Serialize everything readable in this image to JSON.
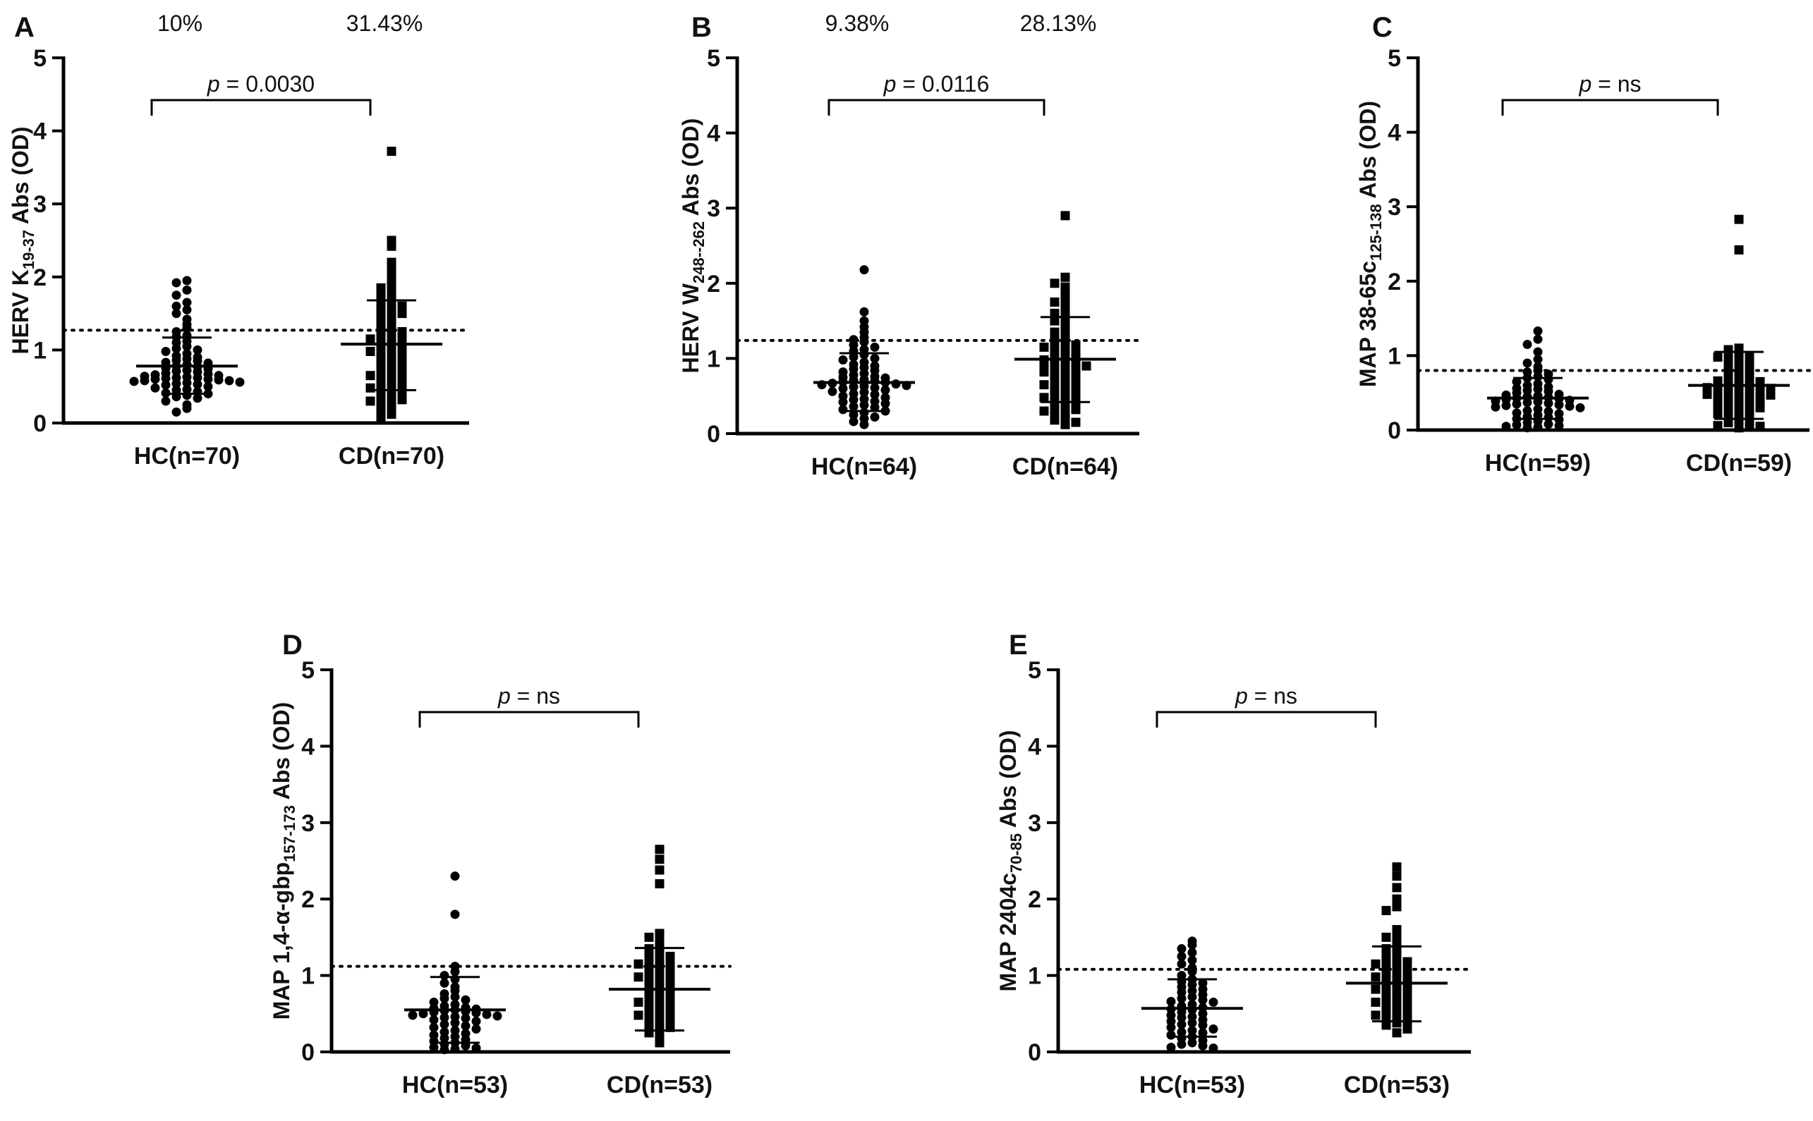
{
  "figure": {
    "background": "#ffffff",
    "marker_color": "#000000"
  },
  "chart_data": [
    {
      "panel": "A",
      "type": "scatter",
      "ylabel": {
        "main": "HERV K",
        "sub": "19-37",
        "tail": " Abs (OD)"
      },
      "ylim": [
        0,
        5
      ],
      "yticks": [
        0,
        1,
        2,
        3,
        4,
        5
      ],
      "cutoff": 1.27,
      "percentages": [
        "10%",
        "31.43%"
      ],
      "pvalue": {
        "italic": "p",
        "text": " = 0.0030"
      },
      "groups": [
        {
          "label": "HC(n=70)",
          "marker": "circle",
          "mean": 0.78,
          "sd_low": 0.4,
          "sd_high": 1.17,
          "values": [
            1.95,
            1.92,
            1.82,
            1.75,
            1.65,
            1.6,
            1.55,
            1.5,
            1.42,
            1.35,
            1.3,
            1.25,
            1.2,
            1.18,
            1.12,
            1.1,
            1.05,
            1.02,
            1.0,
            0.98,
            0.95,
            0.92,
            0.9,
            0.88,
            0.86,
            0.85,
            0.83,
            0.82,
            0.8,
            0.78,
            0.77,
            0.75,
            0.74,
            0.72,
            0.71,
            0.7,
            0.68,
            0.67,
            0.66,
            0.65,
            0.64,
            0.63,
            0.62,
            0.62,
            0.61,
            0.6,
            0.6,
            0.59,
            0.58,
            0.58,
            0.57,
            0.56,
            0.55,
            0.54,
            0.53,
            0.52,
            0.5,
            0.48,
            0.46,
            0.45,
            0.43,
            0.41,
            0.4,
            0.38,
            0.36,
            0.34,
            0.3,
            0.25,
            0.2,
            0.15
          ]
        },
        {
          "label": "CD(n=70)",
          "marker": "square",
          "mean": 1.08,
          "sd_low": 0.45,
          "sd_high": 1.68,
          "values": [
            3.72,
            2.5,
            2.42,
            2.2,
            2.1,
            2.0,
            1.95,
            1.9,
            1.85,
            1.8,
            1.75,
            1.7,
            1.68,
            1.65,
            1.62,
            1.6,
            1.55,
            1.52,
            1.5,
            1.45,
            1.42,
            1.4,
            1.35,
            1.3,
            1.28,
            1.25,
            1.22,
            1.2,
            1.18,
            1.15,
            1.12,
            1.1,
            1.08,
            1.05,
            1.02,
            1.0,
            0.98,
            0.95,
            0.92,
            0.9,
            0.88,
            0.85,
            0.82,
            0.8,
            0.78,
            0.75,
            0.72,
            0.7,
            0.68,
            0.65,
            0.62,
            0.6,
            0.58,
            0.55,
            0.52,
            0.5,
            0.48,
            0.45,
            0.42,
            0.4,
            0.38,
            0.35,
            0.32,
            0.3,
            0.28,
            0.25,
            0.2,
            0.15,
            0.12,
            0.08
          ]
        }
      ]
    },
    {
      "panel": "B",
      "type": "scatter",
      "ylabel": {
        "main": "HERV W",
        "sub": "248--262",
        "tail": " Abs (OD)"
      },
      "ylim": [
        0,
        5
      ],
      "yticks": [
        0,
        1,
        2,
        3,
        4,
        5
      ],
      "cutoff": 1.24,
      "percentages": [
        "9.38%",
        "28.13%"
      ],
      "pvalue": {
        "italic": "p",
        "text": " = 0.0116"
      },
      "groups": [
        {
          "label": "HC(n=64)",
          "marker": "circle",
          "mean": 0.68,
          "sd_low": 0.3,
          "sd_high": 1.07,
          "values": [
            2.18,
            1.62,
            1.5,
            1.42,
            1.35,
            1.28,
            1.25,
            1.22,
            1.18,
            1.15,
            1.12,
            1.1,
            1.05,
            1.02,
            1.0,
            0.98,
            0.95,
            0.92,
            0.9,
            0.88,
            0.86,
            0.84,
            0.82,
            0.8,
            0.78,
            0.76,
            0.75,
            0.74,
            0.72,
            0.71,
            0.7,
            0.69,
            0.68,
            0.67,
            0.66,
            0.65,
            0.64,
            0.63,
            0.62,
            0.61,
            0.6,
            0.58,
            0.56,
            0.55,
            0.53,
            0.52,
            0.5,
            0.48,
            0.46,
            0.45,
            0.43,
            0.42,
            0.4,
            0.38,
            0.36,
            0.35,
            0.32,
            0.3,
            0.28,
            0.25,
            0.22,
            0.2,
            0.16,
            0.12
          ]
        },
        {
          "label": "CD(n=64)",
          "marker": "square",
          "mean": 0.99,
          "sd_low": 0.42,
          "sd_high": 1.55,
          "values": [
            2.9,
            2.08,
            2.0,
            1.95,
            1.88,
            1.82,
            1.75,
            1.7,
            1.65,
            1.6,
            1.55,
            1.5,
            1.45,
            1.4,
            1.35,
            1.3,
            1.25,
            1.22,
            1.2,
            1.18,
            1.15,
            1.12,
            1.1,
            1.08,
            1.05,
            1.02,
            1.0,
            0.98,
            0.96,
            0.95,
            0.93,
            0.92,
            0.9,
            0.88,
            0.86,
            0.85,
            0.82,
            0.8,
            0.78,
            0.75,
            0.72,
            0.7,
            0.68,
            0.65,
            0.62,
            0.6,
            0.58,
            0.55,
            0.52,
            0.5,
            0.48,
            0.45,
            0.42,
            0.4,
            0.38,
            0.35,
            0.32,
            0.3,
            0.28,
            0.25,
            0.2,
            0.18,
            0.15,
            0.12
          ]
        }
      ]
    },
    {
      "panel": "C",
      "type": "scatter",
      "ylabel": {
        "main": "MAP 38-65c",
        "sub": "125-138",
        "tail": " Abs (OD)"
      },
      "ylim": [
        0,
        5
      ],
      "yticks": [
        0,
        1,
        2,
        3,
        4,
        5
      ],
      "cutoff": 0.8,
      "percentages": [
        "",
        ""
      ],
      "pvalue": {
        "italic": "p",
        "text": " = ns"
      },
      "groups": [
        {
          "label": "HC(n=59)",
          "marker": "circle",
          "mean": 0.43,
          "sd_low": 0.15,
          "sd_high": 0.7,
          "values": [
            1.33,
            1.22,
            1.15,
            1.05,
            0.95,
            0.9,
            0.85,
            0.8,
            0.78,
            0.75,
            0.72,
            0.7,
            0.68,
            0.65,
            0.62,
            0.6,
            0.58,
            0.56,
            0.55,
            0.53,
            0.52,
            0.5,
            0.48,
            0.47,
            0.46,
            0.45,
            0.44,
            0.43,
            0.42,
            0.41,
            0.4,
            0.39,
            0.38,
            0.37,
            0.36,
            0.35,
            0.34,
            0.33,
            0.32,
            0.31,
            0.3,
            0.28,
            0.26,
            0.25,
            0.23,
            0.22,
            0.2,
            0.18,
            0.17,
            0.15,
            0.14,
            0.12,
            0.1,
            0.08,
            0.07,
            0.06,
            0.05,
            0.04,
            0.03
          ]
        },
        {
          "label": "CD(n=59)",
          "marker": "square",
          "mean": 0.6,
          "sd_low": 0.15,
          "sd_high": 1.05,
          "values": [
            2.83,
            2.42,
            1.1,
            1.08,
            1.05,
            1.02,
            1.0,
            0.98,
            0.95,
            0.92,
            0.9,
            0.88,
            0.85,
            0.82,
            0.8,
            0.78,
            0.75,
            0.72,
            0.7,
            0.68,
            0.66,
            0.65,
            0.63,
            0.62,
            0.6,
            0.59,
            0.58,
            0.57,
            0.56,
            0.55,
            0.54,
            0.52,
            0.5,
            0.49,
            0.48,
            0.47,
            0.46,
            0.45,
            0.44,
            0.42,
            0.4,
            0.38,
            0.36,
            0.35,
            0.32,
            0.3,
            0.28,
            0.26,
            0.25,
            0.22,
            0.2,
            0.18,
            0.15,
            0.12,
            0.1,
            0.08,
            0.06,
            0.05,
            0.03
          ]
        }
      ]
    },
    {
      "panel": "D",
      "type": "scatter",
      "ylabel": {
        "main": "MAP 1,4-α-gbp",
        "sub": "157-173",
        "tail": " Abs (OD)"
      },
      "ylim": [
        0,
        5
      ],
      "yticks": [
        0,
        1,
        2,
        3,
        4,
        5
      ],
      "cutoff": 1.12,
      "percentages": [
        "",
        ""
      ],
      "pvalue": {
        "italic": "p",
        "text": " = ns"
      },
      "groups": [
        {
          "label": "HC(n=53)",
          "marker": "circle",
          "mean": 0.55,
          "sd_low": 0.12,
          "sd_high": 0.98,
          "values": [
            2.3,
            1.8,
            1.12,
            1.05,
            1.0,
            0.95,
            0.9,
            0.85,
            0.8,
            0.76,
            0.72,
            0.7,
            0.68,
            0.65,
            0.62,
            0.6,
            0.58,
            0.57,
            0.56,
            0.55,
            0.54,
            0.53,
            0.52,
            0.51,
            0.5,
            0.49,
            0.48,
            0.47,
            0.46,
            0.45,
            0.44,
            0.42,
            0.4,
            0.38,
            0.36,
            0.34,
            0.32,
            0.3,
            0.28,
            0.26,
            0.24,
            0.22,
            0.2,
            0.18,
            0.16,
            0.14,
            0.12,
            0.1,
            0.08,
            0.06,
            0.05,
            0.04,
            0.03
          ]
        },
        {
          "label": "CD(n=53)",
          "marker": "square",
          "mean": 0.82,
          "sd_low": 0.28,
          "sd_high": 1.36,
          "values": [
            2.65,
            2.52,
            2.38,
            2.2,
            1.55,
            1.5,
            1.45,
            1.4,
            1.35,
            1.3,
            1.28,
            1.25,
            1.22,
            1.2,
            1.18,
            1.15,
            1.12,
            1.1,
            1.08,
            1.05,
            1.02,
            1.0,
            0.98,
            0.95,
            0.92,
            0.9,
            0.88,
            0.85,
            0.82,
            0.8,
            0.78,
            0.75,
            0.72,
            0.7,
            0.68,
            0.65,
            0.62,
            0.6,
            0.58,
            0.55,
            0.52,
            0.5,
            0.48,
            0.45,
            0.42,
            0.4,
            0.38,
            0.35,
            0.32,
            0.28,
            0.25,
            0.2,
            0.12
          ]
        }
      ]
    },
    {
      "panel": "E",
      "type": "scatter",
      "ylabel": {
        "main": "MAP 2404c",
        "sub": "70-85",
        "tail": " Abs (OD)"
      },
      "ylim": [
        0,
        5
      ],
      "yticks": [
        0,
        1,
        2,
        3,
        4,
        5
      ],
      "cutoff": 1.08,
      "percentages": [
        "",
        ""
      ],
      "pvalue": {
        "italic": "p",
        "text": " = ns"
      },
      "groups": [
        {
          "label": "HC(n=53)",
          "marker": "circle",
          "mean": 0.57,
          "sd_low": 0.2,
          "sd_high": 0.95,
          "values": [
            1.45,
            1.4,
            1.35,
            1.3,
            1.25,
            1.2,
            1.15,
            1.1,
            1.05,
            1.0,
            0.95,
            0.92,
            0.9,
            0.88,
            0.85,
            0.82,
            0.8,
            0.78,
            0.75,
            0.72,
            0.7,
            0.68,
            0.66,
            0.65,
            0.62,
            0.6,
            0.58,
            0.56,
            0.55,
            0.52,
            0.5,
            0.48,
            0.46,
            0.45,
            0.42,
            0.4,
            0.38,
            0.36,
            0.35,
            0.32,
            0.3,
            0.28,
            0.26,
            0.25,
            0.22,
            0.2,
            0.18,
            0.15,
            0.12,
            0.1,
            0.08,
            0.06,
            0.05
          ]
        },
        {
          "label": "CD(n=53)",
          "marker": "square",
          "mean": 0.9,
          "sd_low": 0.4,
          "sd_high": 1.38,
          "values": [
            2.42,
            2.3,
            2.15,
            2.0,
            1.9,
            1.85,
            1.6,
            1.55,
            1.5,
            1.45,
            1.4,
            1.35,
            1.3,
            1.25,
            1.22,
            1.2,
            1.18,
            1.15,
            1.12,
            1.1,
            1.08,
            1.05,
            1.02,
            1.0,
            0.98,
            0.95,
            0.92,
            0.9,
            0.88,
            0.86,
            0.85,
            0.82,
            0.8,
            0.78,
            0.75,
            0.72,
            0.7,
            0.68,
            0.65,
            0.62,
            0.6,
            0.58,
            0.55,
            0.52,
            0.5,
            0.48,
            0.45,
            0.42,
            0.4,
            0.38,
            0.35,
            0.3,
            0.25
          ]
        }
      ]
    }
  ]
}
